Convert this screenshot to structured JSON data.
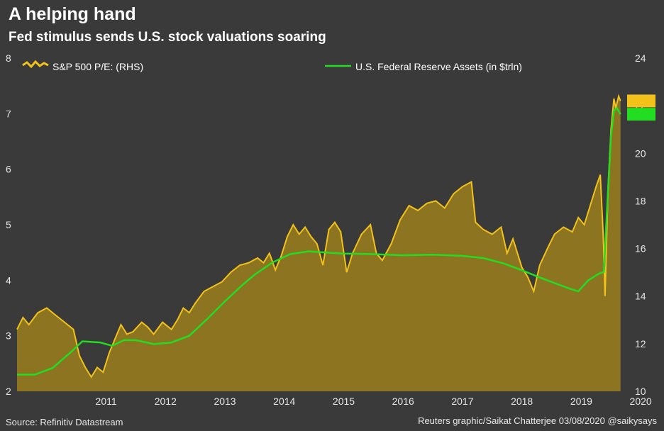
{
  "header": {
    "title": "A helping hand",
    "subtitle": "Fed stimulus sends U.S. stock valuations soaring"
  },
  "footer": {
    "source": "Source: Refinitiv Datastream",
    "credit": "Reuters graphic/Saikat Chatterjee 03/08/2020 @saikysays"
  },
  "colors": {
    "background": "#3a3a3a",
    "pe_line": "#f2c21b",
    "pe_fill": "#8c7420",
    "fed_line": "#22dd22"
  },
  "chart_data": {
    "type": "line",
    "x_unit": "year",
    "x_ticks": [
      "2011",
      "2012",
      "2013",
      "2014",
      "2015",
      "2016",
      "2017",
      "2018",
      "2019",
      "2020"
    ],
    "y_left": {
      "ticks": [
        "2",
        "3",
        "4",
        "5",
        "6",
        "7",
        "8"
      ],
      "range": [
        2,
        8
      ]
    },
    "y_right": {
      "ticks": [
        "10",
        "12",
        "14",
        "16",
        "18",
        "20",
        "22",
        "24"
      ],
      "range": [
        10,
        24
      ]
    },
    "grid": false,
    "legend_position": "top",
    "series": [
      {
        "name": "S&P 500 P/E: (RHS)",
        "axis": "right",
        "style": "area",
        "color": "#f2c21b",
        "points": [
          [
            2010.0,
            12.6
          ],
          [
            2010.1,
            13.1
          ],
          [
            2010.2,
            12.8
          ],
          [
            2010.35,
            13.3
          ],
          [
            2010.5,
            13.5
          ],
          [
            2010.65,
            13.2
          ],
          [
            2010.8,
            12.9
          ],
          [
            2010.95,
            12.6
          ],
          [
            2011.05,
            11.5
          ],
          [
            2011.15,
            11.0
          ],
          [
            2011.25,
            10.6
          ],
          [
            2011.35,
            11.0
          ],
          [
            2011.45,
            10.8
          ],
          [
            2011.55,
            11.6
          ],
          [
            2011.65,
            12.2
          ],
          [
            2011.75,
            12.8
          ],
          [
            2011.85,
            12.4
          ],
          [
            2011.95,
            12.5
          ],
          [
            2012.1,
            12.9
          ],
          [
            2012.2,
            12.7
          ],
          [
            2012.3,
            12.4
          ],
          [
            2012.45,
            12.9
          ],
          [
            2012.6,
            12.6
          ],
          [
            2012.7,
            13.0
          ],
          [
            2012.8,
            13.5
          ],
          [
            2012.9,
            13.3
          ],
          [
            2013.0,
            13.7
          ],
          [
            2013.15,
            14.2
          ],
          [
            2013.3,
            14.4
          ],
          [
            2013.45,
            14.6
          ],
          [
            2013.6,
            15.0
          ],
          [
            2013.75,
            15.3
          ],
          [
            2013.9,
            15.4
          ],
          [
            2014.05,
            15.6
          ],
          [
            2014.15,
            15.4
          ],
          [
            2014.25,
            15.8
          ],
          [
            2014.35,
            15.1
          ],
          [
            2014.45,
            15.7
          ],
          [
            2014.55,
            16.5
          ],
          [
            2014.65,
            17.0
          ],
          [
            2014.75,
            16.6
          ],
          [
            2014.85,
            16.9
          ],
          [
            2014.95,
            16.5
          ],
          [
            2015.05,
            16.2
          ],
          [
            2015.15,
            15.3
          ],
          [
            2015.25,
            16.8
          ],
          [
            2015.35,
            17.1
          ],
          [
            2015.45,
            16.7
          ],
          [
            2015.55,
            15.0
          ],
          [
            2015.65,
            15.8
          ],
          [
            2015.8,
            16.6
          ],
          [
            2015.95,
            17.0
          ],
          [
            2016.05,
            15.8
          ],
          [
            2016.15,
            15.5
          ],
          [
            2016.3,
            16.2
          ],
          [
            2016.45,
            17.2
          ],
          [
            2016.6,
            17.8
          ],
          [
            2016.75,
            17.6
          ],
          [
            2016.9,
            17.9
          ],
          [
            2017.05,
            18.0
          ],
          [
            2017.2,
            17.7
          ],
          [
            2017.35,
            18.3
          ],
          [
            2017.5,
            18.6
          ],
          [
            2017.65,
            18.8
          ],
          [
            2017.72,
            17.1
          ],
          [
            2017.85,
            16.8
          ],
          [
            2018.0,
            16.6
          ],
          [
            2018.15,
            16.9
          ],
          [
            2018.25,
            15.8
          ],
          [
            2018.35,
            16.4
          ],
          [
            2018.5,
            15.2
          ],
          [
            2018.6,
            14.8
          ],
          [
            2018.7,
            14.2
          ],
          [
            2018.8,
            15.3
          ],
          [
            2018.95,
            16.1
          ],
          [
            2019.05,
            16.6
          ],
          [
            2019.2,
            16.9
          ],
          [
            2019.35,
            16.7
          ],
          [
            2019.45,
            17.3
          ],
          [
            2019.55,
            17.0
          ],
          [
            2019.65,
            17.8
          ],
          [
            2019.75,
            18.6
          ],
          [
            2019.82,
            19.1
          ],
          [
            2019.87,
            16.5
          ],
          [
            2019.9,
            14.0
          ],
          [
            2019.95,
            18.5
          ],
          [
            2020.0,
            21.0
          ],
          [
            2020.05,
            22.3
          ],
          [
            2020.08,
            21.9
          ],
          [
            2020.13,
            22.4
          ],
          [
            2020.16,
            22.2
          ]
        ]
      },
      {
        "name": "U.S. Federal Reserve Assets (in $trln)",
        "axis": "left",
        "style": "line",
        "color": "#22dd22",
        "points": [
          [
            2010.0,
            2.3
          ],
          [
            2010.3,
            2.3
          ],
          [
            2010.6,
            2.42
          ],
          [
            2010.9,
            2.7
          ],
          [
            2011.1,
            2.9
          ],
          [
            2011.4,
            2.88
          ],
          [
            2011.6,
            2.82
          ],
          [
            2011.8,
            2.92
          ],
          [
            2012.0,
            2.92
          ],
          [
            2012.3,
            2.85
          ],
          [
            2012.6,
            2.88
          ],
          [
            2012.9,
            3.0
          ],
          [
            2013.2,
            3.3
          ],
          [
            2013.5,
            3.62
          ],
          [
            2013.8,
            3.92
          ],
          [
            2014.0,
            4.1
          ],
          [
            2014.3,
            4.32
          ],
          [
            2014.6,
            4.47
          ],
          [
            2014.9,
            4.52
          ],
          [
            2015.5,
            4.48
          ],
          [
            2016.0,
            4.47
          ],
          [
            2016.5,
            4.45
          ],
          [
            2017.0,
            4.46
          ],
          [
            2017.5,
            4.44
          ],
          [
            2017.85,
            4.4
          ],
          [
            2018.2,
            4.3
          ],
          [
            2018.5,
            4.18
          ],
          [
            2018.8,
            4.05
          ],
          [
            2019.05,
            3.95
          ],
          [
            2019.3,
            3.85
          ],
          [
            2019.45,
            3.8
          ],
          [
            2019.62,
            4.0
          ],
          [
            2019.8,
            4.12
          ],
          [
            2019.88,
            4.15
          ],
          [
            2019.94,
            5.4
          ],
          [
            2020.0,
            6.6
          ],
          [
            2020.05,
            7.05
          ],
          [
            2020.1,
            7.1
          ],
          [
            2020.16,
            6.99
          ]
        ]
      }
    ]
  }
}
